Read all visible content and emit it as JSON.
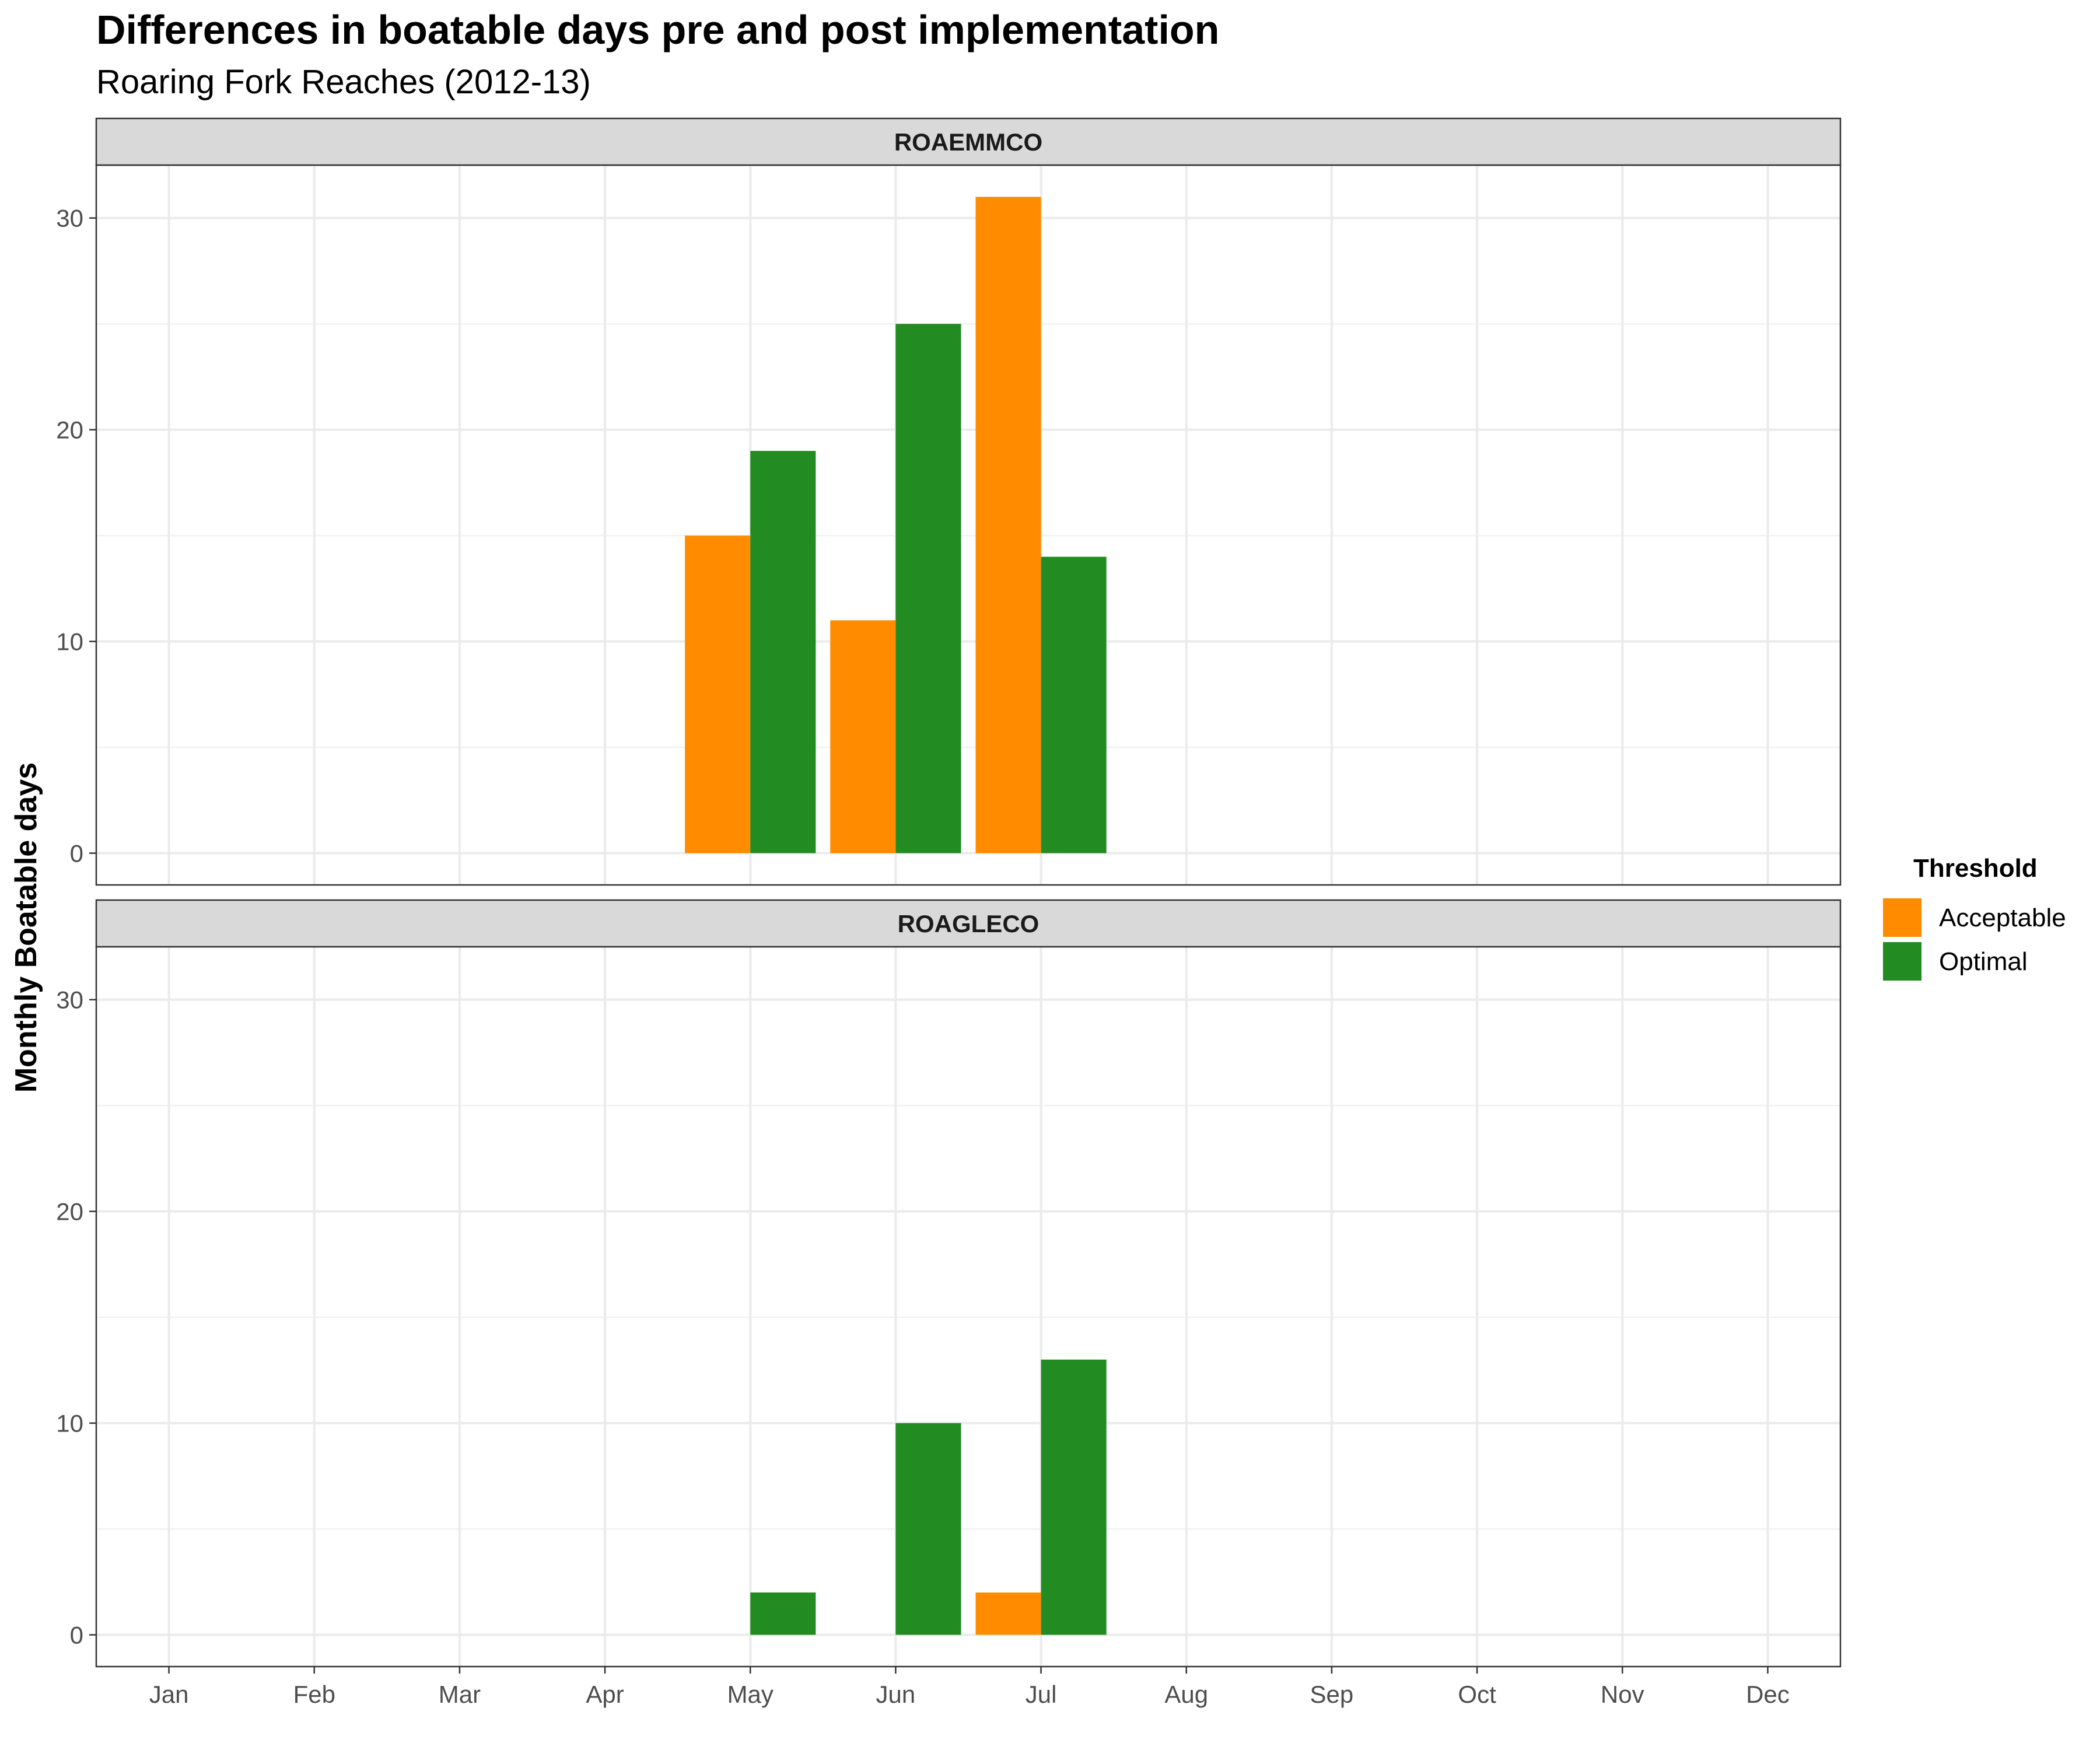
{
  "chart_data": {
    "type": "bar",
    "title": "Differences in boatable days pre and post implementation",
    "subtitle": "Roaring Fork Reaches (2012-13)",
    "ylabel": "Monthly Boatable days",
    "xlabel": "",
    "categories": [
      "Jan",
      "Feb",
      "Mar",
      "Apr",
      "May",
      "Jun",
      "Jul",
      "Aug",
      "Sep",
      "Oct",
      "Nov",
      "Dec"
    ],
    "ylim": [
      -1.5,
      32.5
    ],
    "yticks": [
      0,
      10,
      20,
      30
    ],
    "grid": true,
    "legend": {
      "title": "Threshold",
      "position": "right",
      "entries": [
        "Acceptable",
        "Optimal"
      ]
    },
    "colors": {
      "Acceptable": "#ff8c00",
      "Optimal": "#228b22"
    },
    "panels": [
      {
        "name": "ROAEMMCO",
        "series": [
          {
            "name": "Acceptable",
            "values": [
              0,
              0,
              0,
              0,
              15,
              11,
              31,
              0,
              0,
              0,
              0,
              0
            ]
          },
          {
            "name": "Optimal",
            "values": [
              0,
              0,
              0,
              0,
              19,
              25,
              14,
              0,
              0,
              0,
              0,
              0
            ]
          }
        ]
      },
      {
        "name": "ROAGLECO",
        "series": [
          {
            "name": "Acceptable",
            "values": [
              0,
              0,
              0,
              0,
              0,
              0,
              2,
              0,
              0,
              0,
              0,
              0
            ]
          },
          {
            "name": "Optimal",
            "values": [
              0,
              0,
              0,
              0,
              2,
              10,
              13,
              0,
              0,
              0,
              0,
              0
            ]
          }
        ]
      }
    ]
  }
}
